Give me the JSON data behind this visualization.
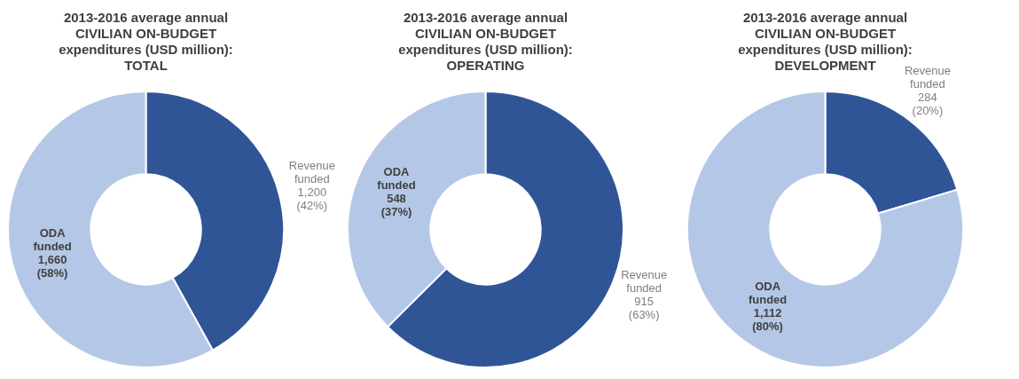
{
  "chart_data": [
    {
      "type": "donut",
      "title": "2013-2016 average annual\nCIVILIAN ON-BUDGET\nexpenditures (USD million):\nTOTAL",
      "categories": [
        "Revenue funded",
        "ODA funded"
      ],
      "values": [
        1200,
        1660
      ],
      "colors": [
        "#2f5597",
        "#b4c7e7"
      ],
      "value_labels": [
        "1,200\n(42%)",
        "1,660\n(58%)"
      ]
    },
    {
      "type": "donut",
      "title": "2013-2016 average annual\nCIVILIAN ON-BUDGET\nexpenditures (USD million):\nOPERATING",
      "categories": [
        "Revenue funded",
        "ODA funded"
      ],
      "values": [
        915,
        548
      ],
      "colors": [
        "#2f5597",
        "#b4c7e7"
      ],
      "value_labels": [
        "915\n(63%)",
        "548\n(37%)"
      ]
    },
    {
      "type": "donut",
      "title": "2013-2016 average annual\nCIVILIAN ON-BUDGET\nexpenditures (USD million):\nDEVELOPMENT",
      "categories": [
        "Revenue funded",
        "ODA funded"
      ],
      "values": [
        284,
        1112
      ],
      "colors": [
        "#2f5597",
        "#b4c7e7"
      ],
      "value_labels": [
        "284\n(20%)",
        "1,112\n(80%)"
      ]
    }
  ]
}
